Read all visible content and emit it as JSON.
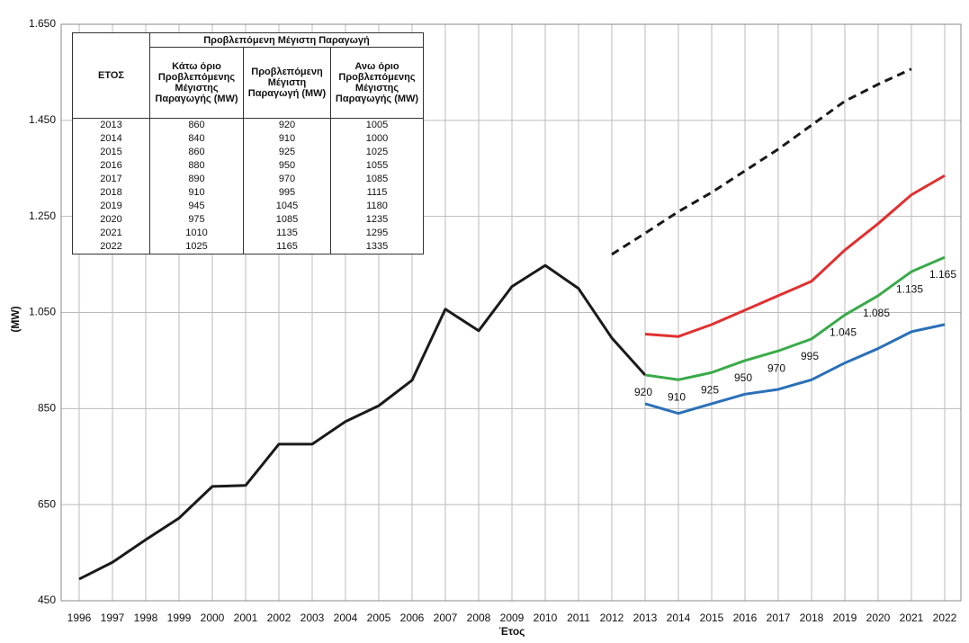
{
  "chart_data": {
    "type": "line",
    "y_label": "(MW)",
    "x_label": "Έτος",
    "categories": [
      "1996",
      "1997",
      "1998",
      "1999",
      "2000",
      "2001",
      "2002",
      "2003",
      "2004",
      "2005",
      "2006",
      "2007",
      "2008",
      "2009",
      "2010",
      "2011",
      "2012",
      "2013",
      "2014",
      "2015",
      "2016",
      "2017",
      "2018",
      "2019",
      "2020",
      "2021",
      "2022"
    ],
    "ylim": [
      450,
      1650
    ],
    "yticks": [
      450,
      650,
      850,
      {
        "value": 1050,
        "label": "1.050"
      },
      {
        "value": 1250,
        "label": "1.250"
      },
      {
        "value": 1450,
        "label": "1.450"
      },
      {
        "value": 1650,
        "label": "1.650"
      }
    ],
    "grid": true,
    "series": [
      {
        "color": "#1a1a1a",
        "values": [
          495,
          530,
          577,
          622,
          688,
          690,
          776,
          776,
          823,
          856,
          909,
          1057,
          1012,
          1104,
          1148,
          1100,
          997,
          920,
          null,
          null,
          null,
          null,
          null,
          null,
          null,
          null,
          null
        ]
      },
      {
        "color": "#1a1a1a",
        "dashed": true,
        "values": [
          null,
          null,
          null,
          null,
          null,
          null,
          null,
          null,
          null,
          null,
          null,
          null,
          null,
          null,
          null,
          null,
          1171,
          1215,
          1260,
          1300,
          1345,
          1390,
          1440,
          1490,
          1525,
          1557,
          null
        ]
      },
      {
        "color": "#e03030",
        "values": [
          null,
          null,
          null,
          null,
          null,
          null,
          null,
          null,
          null,
          null,
          null,
          null,
          null,
          null,
          null,
          null,
          null,
          1005,
          1000,
          1025,
          1055,
          1085,
          1115,
          1180,
          1235,
          1295,
          1335
        ]
      },
      {
        "color": "#3aaa4a",
        "values": [
          null,
          null,
          null,
          null,
          null,
          null,
          null,
          null,
          null,
          null,
          null,
          null,
          null,
          null,
          null,
          null,
          null,
          920,
          910,
          925,
          950,
          970,
          995,
          1045,
          1085,
          1135,
          1165
        ],
        "value_labels": [
          null,
          null,
          null,
          null,
          null,
          null,
          null,
          null,
          null,
          null,
          null,
          null,
          null,
          null,
          null,
          null,
          null,
          "920",
          "910",
          "925",
          "950",
          "970",
          "995",
          "1.045",
          "1.085",
          "1.135",
          "1.165"
        ]
      },
      {
        "color": "#2a70b8",
        "values": [
          null,
          null,
          null,
          null,
          null,
          null,
          null,
          null,
          null,
          null,
          null,
          null,
          null,
          null,
          null,
          null,
          null,
          860,
          840,
          860,
          880,
          890,
          910,
          945,
          975,
          1010,
          1025
        ]
      }
    ]
  },
  "table": {
    "year_header": "ΕΤΟΣ",
    "group_header": "Προβλεπόμενη Μέγιστη Παραγωγή",
    "columns": [
      "Κάτω όριο Προβλεπόμενης Μέγιστης Παραγωγής (MW)",
      "Προβλεπόμενη Μέγιστη Παραγωγή (MW)",
      "Ανω όριο Προβλεπόμενης Μέγιστης Παραγωγής (MW)"
    ],
    "rows": [
      [
        "2013",
        "860",
        "920",
        "1005"
      ],
      [
        "2014",
        "840",
        "910",
        "1000"
      ],
      [
        "2015",
        "860",
        "925",
        "1025"
      ],
      [
        "2016",
        "880",
        "950",
        "1055"
      ],
      [
        "2017",
        "890",
        "970",
        "1085"
      ],
      [
        "2018",
        "910",
        "995",
        "1115"
      ],
      [
        "2019",
        "945",
        "1045",
        "1180"
      ],
      [
        "2020",
        "975",
        "1085",
        "1235"
      ],
      [
        "2021",
        "1010",
        "1135",
        "1295"
      ],
      [
        "2022",
        "1025",
        "1165",
        "1335"
      ]
    ]
  }
}
